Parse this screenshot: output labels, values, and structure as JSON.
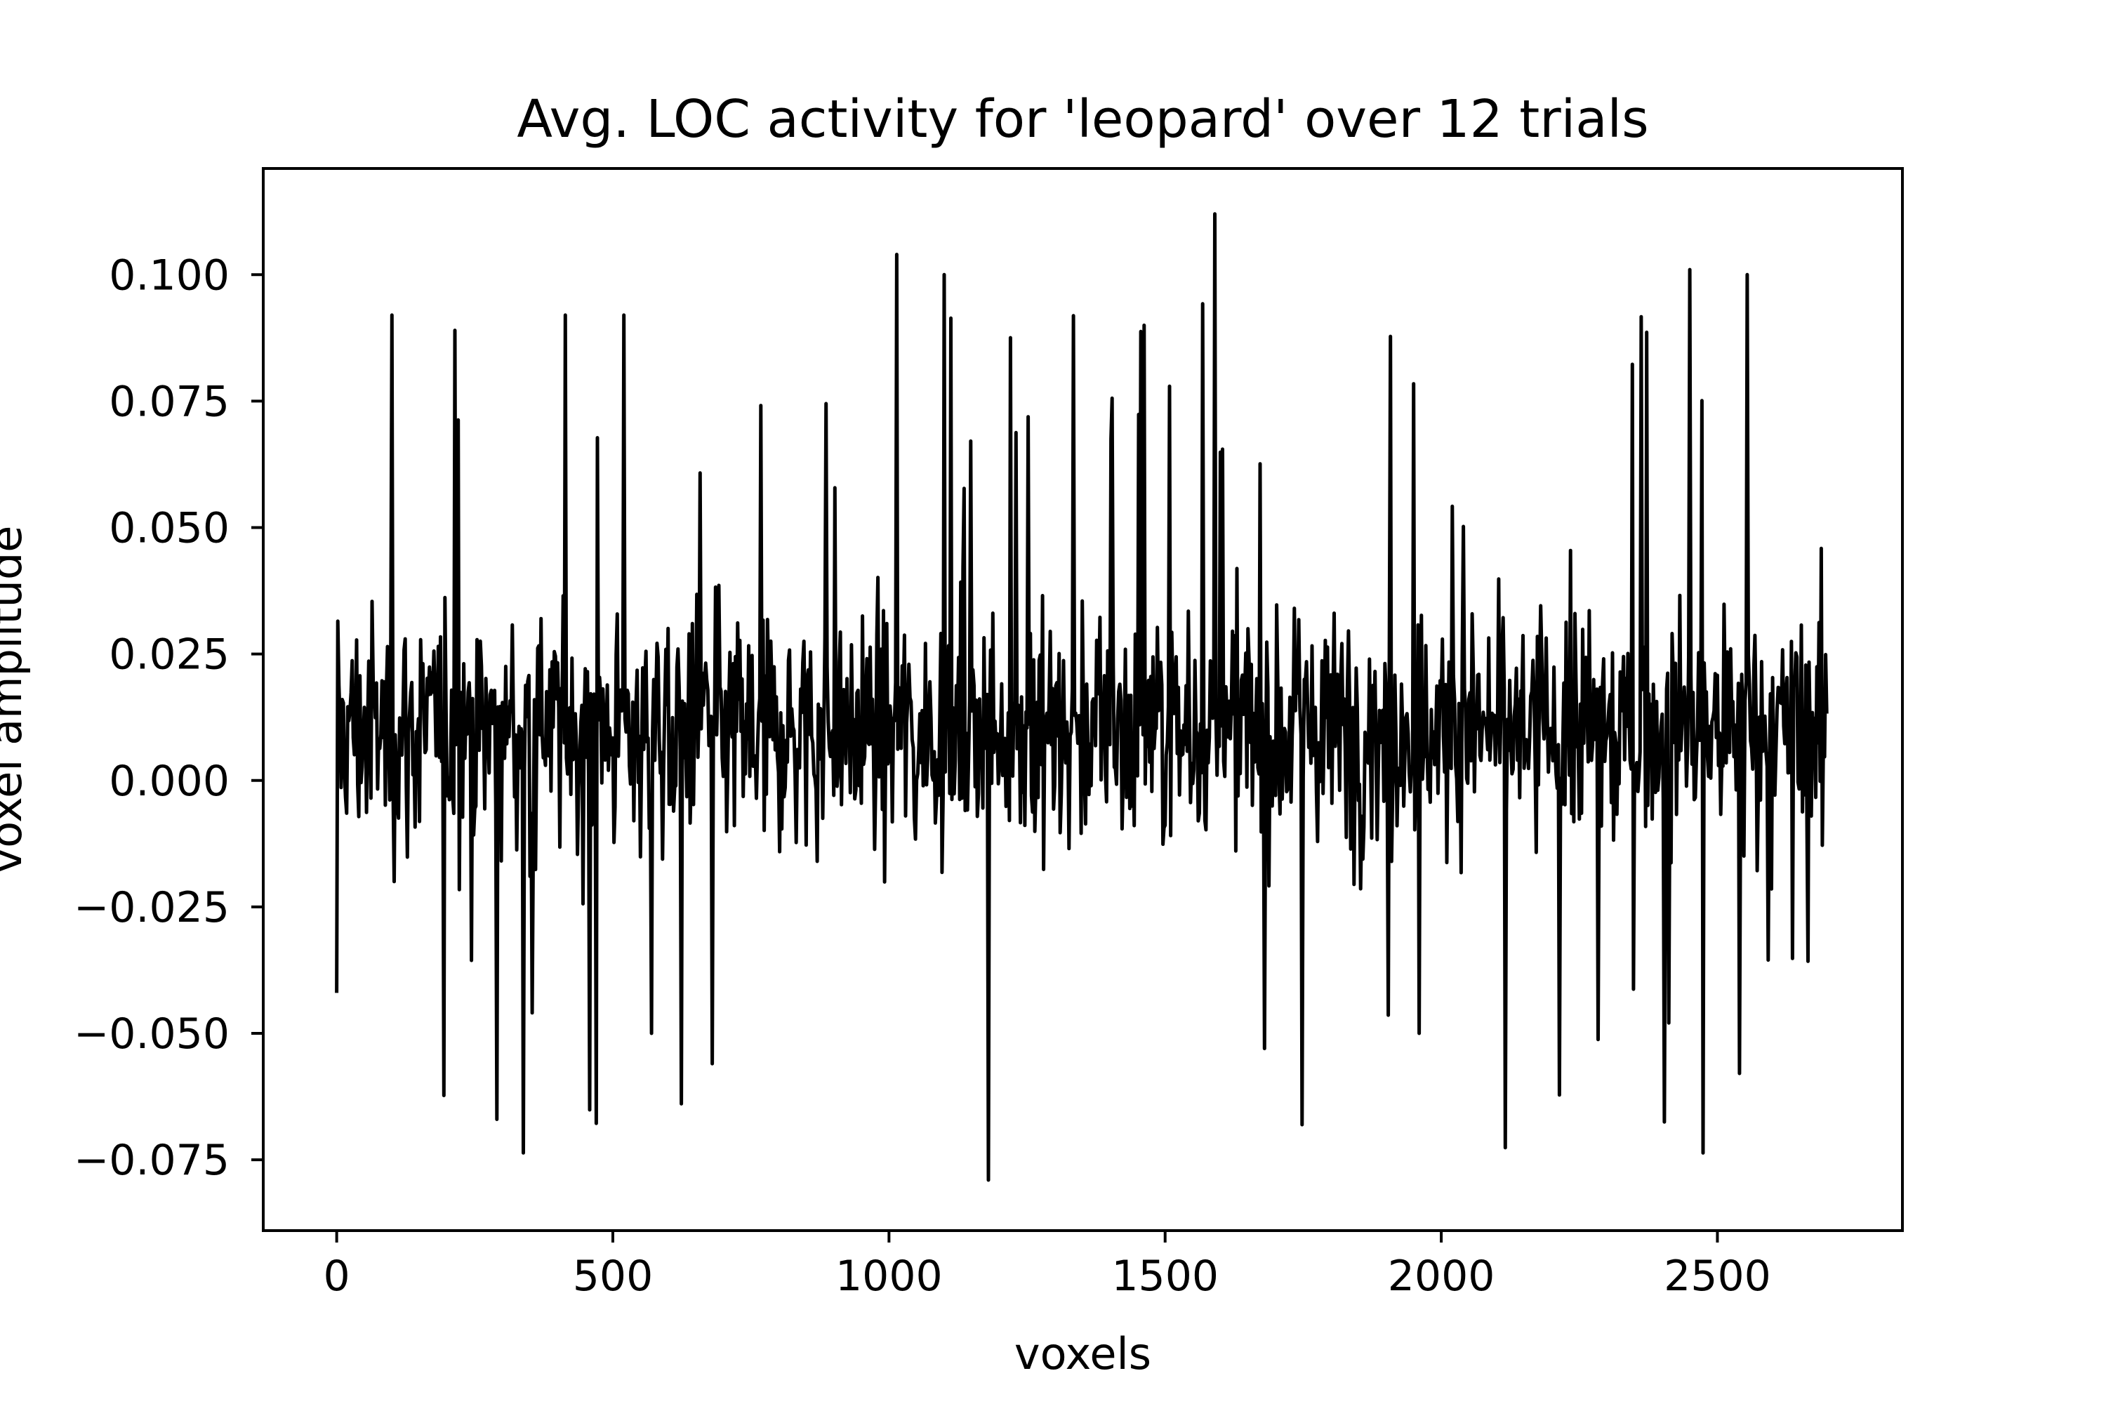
{
  "chart_data": {
    "type": "line",
    "title": "Avg. LOC activity for 'leopard' over 12 trials",
    "xlabel": "voxels",
    "ylabel": "voxel amplitude",
    "xlim": [
      -133,
      2835
    ],
    "ylim": [
      -0.089,
      0.121
    ],
    "xticks": [
      0,
      500,
      1000,
      1500,
      2000,
      2500
    ],
    "xtick_labels": [
      "0",
      "500",
      "1000",
      "1500",
      "2000",
      "2500"
    ],
    "yticks": [
      -0.075,
      -0.05,
      -0.025,
      0.0,
      0.025,
      0.05,
      0.075,
      0.1
    ],
    "ytick_labels": [
      "−0.075",
      "−0.050",
      "−0.025",
      "0.000",
      "0.025",
      "0.050",
      "0.075",
      "0.100"
    ],
    "grid": false,
    "legend": false,
    "line_color": "#000000",
    "series": [
      {
        "x_start": 0,
        "x_step": 1,
        "n_points": 2700,
        "mean_level": 0.01,
        "typical_range": [
          -0.04,
          0.06
        ],
        "min": {
          "x": 1180,
          "y": -0.079
        },
        "max": {
          "x": 1590,
          "y": 0.112
        },
        "notable_peaks": [
          {
            "x": 100,
            "y": 0.092
          },
          {
            "x": 215,
            "y": 0.089
          },
          {
            "x": 290,
            "y": -0.067
          },
          {
            "x": 415,
            "y": 0.092
          },
          {
            "x": 520,
            "y": 0.092
          },
          {
            "x": 570,
            "y": -0.05
          },
          {
            "x": 680,
            "y": -0.056
          },
          {
            "x": 1015,
            "y": 0.104
          },
          {
            "x": 1100,
            "y": 0.1
          },
          {
            "x": 1180,
            "y": -0.079
          },
          {
            "x": 1590,
            "y": 0.112
          },
          {
            "x": 1680,
            "y": -0.053
          },
          {
            "x": 1960,
            "y": -0.05
          },
          {
            "x": 2450,
            "y": 0.101
          },
          {
            "x": 2555,
            "y": 0.1
          }
        ]
      }
    ]
  }
}
